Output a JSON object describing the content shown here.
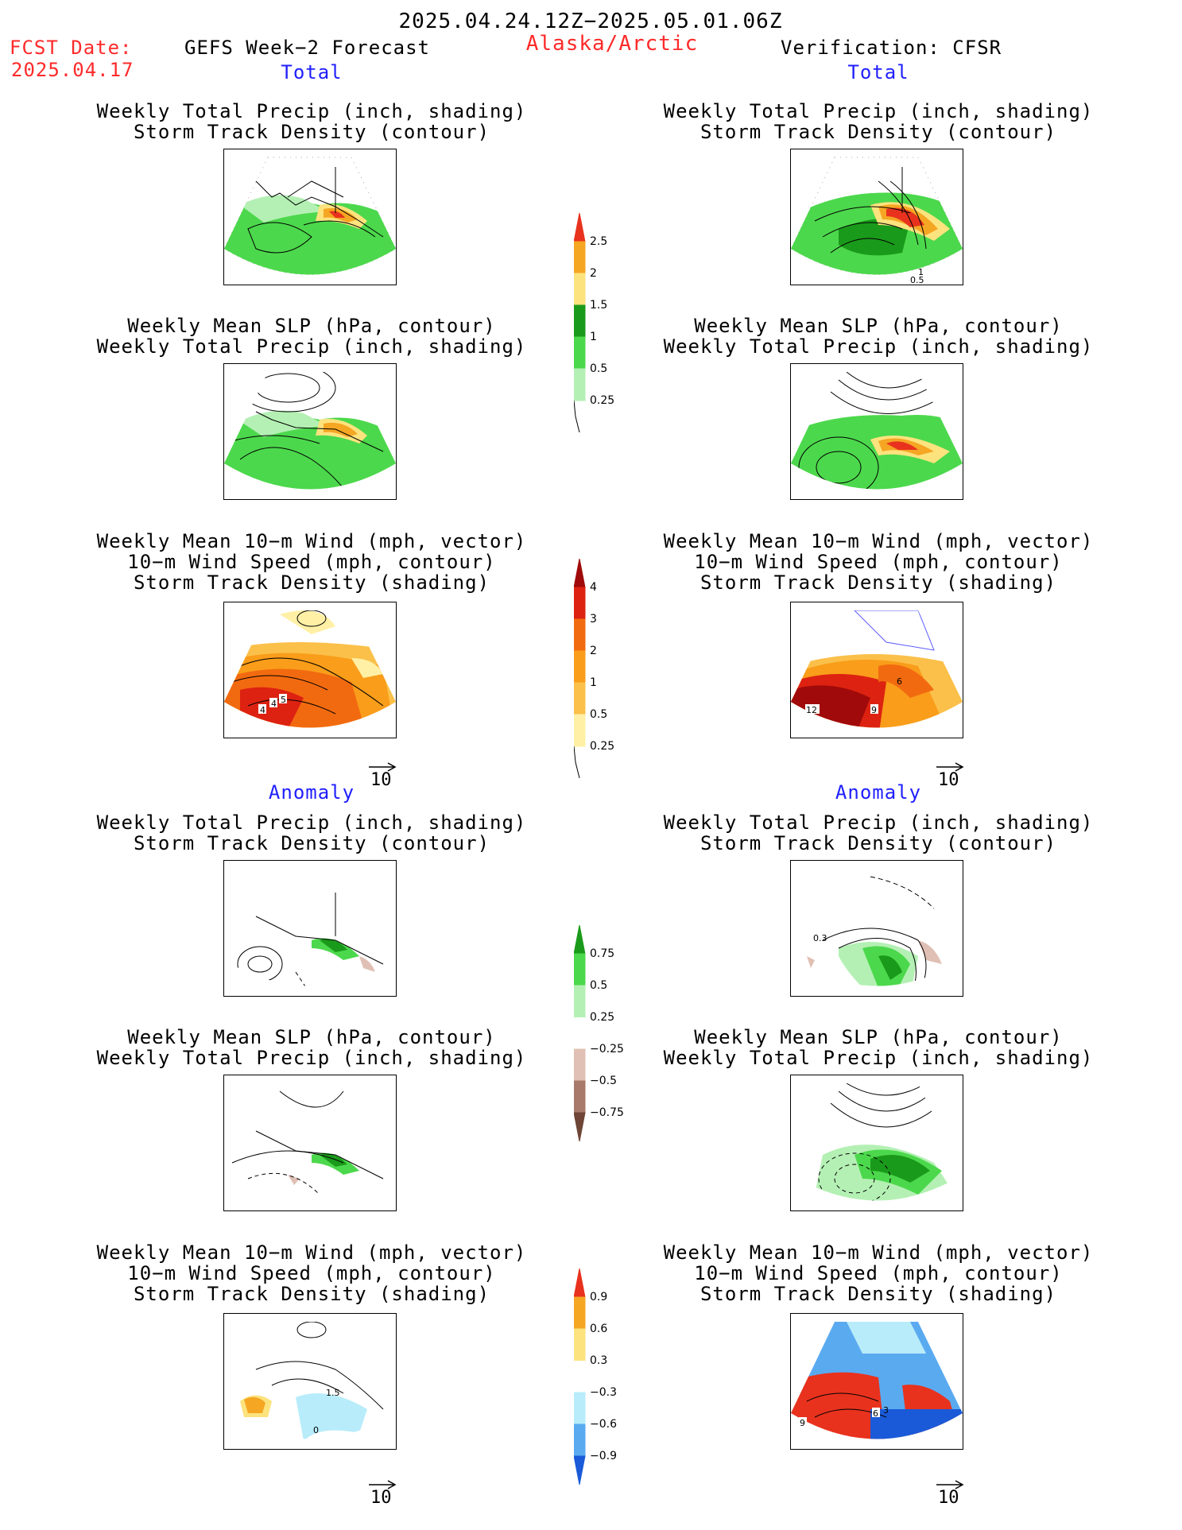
{
  "header": {
    "date_range": "2025.04.24.12Z−2025.05.01.06Z",
    "fcst_label": "FCST Date:",
    "fcst_date": "2025.04.17",
    "model": "GEFS Week−2 Forecast",
    "region": "Alaska/Arctic",
    "verification": "Verification: CFSR"
  },
  "sections": {
    "total": "Total",
    "anomaly": "Anomaly"
  },
  "panel_titles": {
    "precip_storm": [
      "Weekly Total Precip (inch, shading)",
      "Storm Track Density (contour)"
    ],
    "slp_precip": [
      "Weekly Mean SLP (hPa, contour)",
      "Weekly Total Precip (inch, shading)"
    ],
    "wind_storm": [
      "Weekly Mean 10−m Wind (mph, vector)",
      "10−m Wind Speed (mph, contour)",
      "Storm Track Density (shading)"
    ]
  },
  "vector_ref": "10",
  "colorbars": {
    "precip_total": {
      "labels": [
        "2.5",
        "2",
        "1.5",
        "1",
        "0.5",
        "0.25"
      ],
      "colors": [
        "#e8321e",
        "#f5a623",
        "#fde37e",
        "#1a9a1a",
        "#4cd84c",
        "#b4f0b4"
      ]
    },
    "storm_total": {
      "labels": [
        "4",
        "3",
        "2",
        "1",
        "0.5",
        "0.25"
      ],
      "colors": [
        "#a00a0a",
        "#dd2211",
        "#f26a10",
        "#f99d1a",
        "#fbc04a",
        "#fff0a6"
      ]
    },
    "precip_anom": {
      "labels": [
        "0.75",
        "0.5",
        "0.25",
        "−0.25",
        "−0.5",
        "−0.75"
      ],
      "colors": [
        "#1a9a1a",
        "#4cd84c",
        "#b4f0b4",
        "#ffffff",
        "#e0c0b4",
        "#a87a6c",
        "#6e4536"
      ]
    },
    "storm_anom": {
      "labels": [
        "0.9",
        "0.6",
        "0.3",
        "−0.3",
        "−0.6",
        "−0.9"
      ],
      "colors": [
        "#e8321e",
        "#f5a623",
        "#fde37e",
        "#ffffff",
        "#b8ecfa",
        "#5aaaf0",
        "#1a5ad8"
      ]
    }
  },
  "map_labels": {
    "total_fcst_wind": [
      "4",
      "4",
      "5"
    ],
    "total_ver_precip": [
      "1",
      "0.5"
    ],
    "total_ver_wind": [
      "12",
      "9",
      "6"
    ],
    "anom_ver_precip": [
      "0.3"
    ],
    "anom_fcst_wind": [
      "1.5",
      "0"
    ],
    "anom_ver_wind": [
      "9",
      "6",
      "3"
    ]
  }
}
